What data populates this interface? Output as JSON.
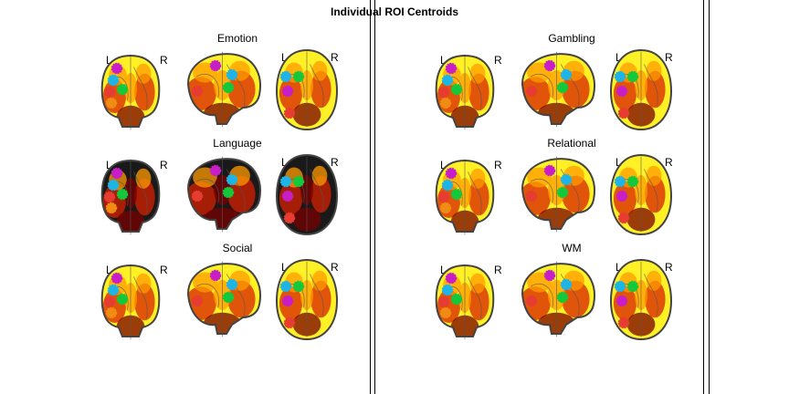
{
  "figure": {
    "title": "Individual ROI Centroids"
  },
  "orientation_labels": {
    "left": "L",
    "right": "R"
  },
  "panels": [
    {
      "title": "Emotion"
    },
    {
      "title": "Gambling"
    },
    {
      "title": "Language"
    },
    {
      "title": "Relational"
    },
    {
      "title": "Social"
    },
    {
      "title": "WM"
    }
  ],
  "roi_colors": {
    "magenta": "#c81ec8",
    "cyan": "#1eb4e6",
    "green": "#14c83c",
    "red": "#e63c32",
    "orange": "#f08c14"
  },
  "map_colors": {
    "yellow": "#ffee00",
    "orange": "#ff9900",
    "red": "#d62000",
    "darkred": "#7a0000",
    "black": "#000000"
  }
}
